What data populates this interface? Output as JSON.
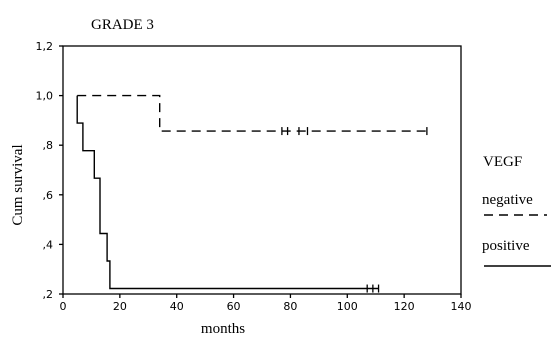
{
  "chart_data": {
    "type": "line",
    "title": "GRADE 3",
    "xlabel": "months",
    "ylabel": "Cum survival",
    "xlim": [
      0,
      140
    ],
    "ylim": [
      0.2,
      1.2
    ],
    "x_ticks": [
      0,
      20,
      40,
      60,
      80,
      100,
      120,
      140
    ],
    "x_tick_labels": [
      "0",
      "20",
      "40",
      "60",
      "80",
      "100",
      "120",
      "140"
    ],
    "y_ticks": [
      0.2,
      0.4,
      0.6,
      0.8,
      1.0,
      1.2
    ],
    "y_tick_labels": [
      ",2",
      ",4",
      ",6",
      ",8",
      "1,0",
      "1,2"
    ],
    "grid": false,
    "legend": {
      "title": "VEGF",
      "placement": "right",
      "entries": [
        "negative",
        "positive"
      ]
    },
    "series": [
      {
        "name": "negative",
        "style": "dashed",
        "color": "#000000",
        "steps": [
          [
            5,
            1.0
          ],
          [
            34,
            1.0
          ],
          [
            34,
            0.857
          ],
          [
            128,
            0.857
          ]
        ],
        "censored": [
          77,
          79,
          83,
          86,
          128
        ]
      },
      {
        "name": "positive",
        "style": "solid",
        "color": "#000000",
        "steps": [
          [
            5,
            1.0
          ],
          [
            5,
            0.889
          ],
          [
            7,
            0.889
          ],
          [
            7,
            0.778
          ],
          [
            11,
            0.778
          ],
          [
            11,
            0.667
          ],
          [
            13,
            0.667
          ],
          [
            13,
            0.444
          ],
          [
            15.5,
            0.444
          ],
          [
            15.5,
            0.333
          ],
          [
            16.5,
            0.333
          ],
          [
            16.5,
            0.222
          ],
          [
            111,
            0.222
          ]
        ],
        "censored": [
          107,
          109,
          111
        ]
      }
    ]
  }
}
